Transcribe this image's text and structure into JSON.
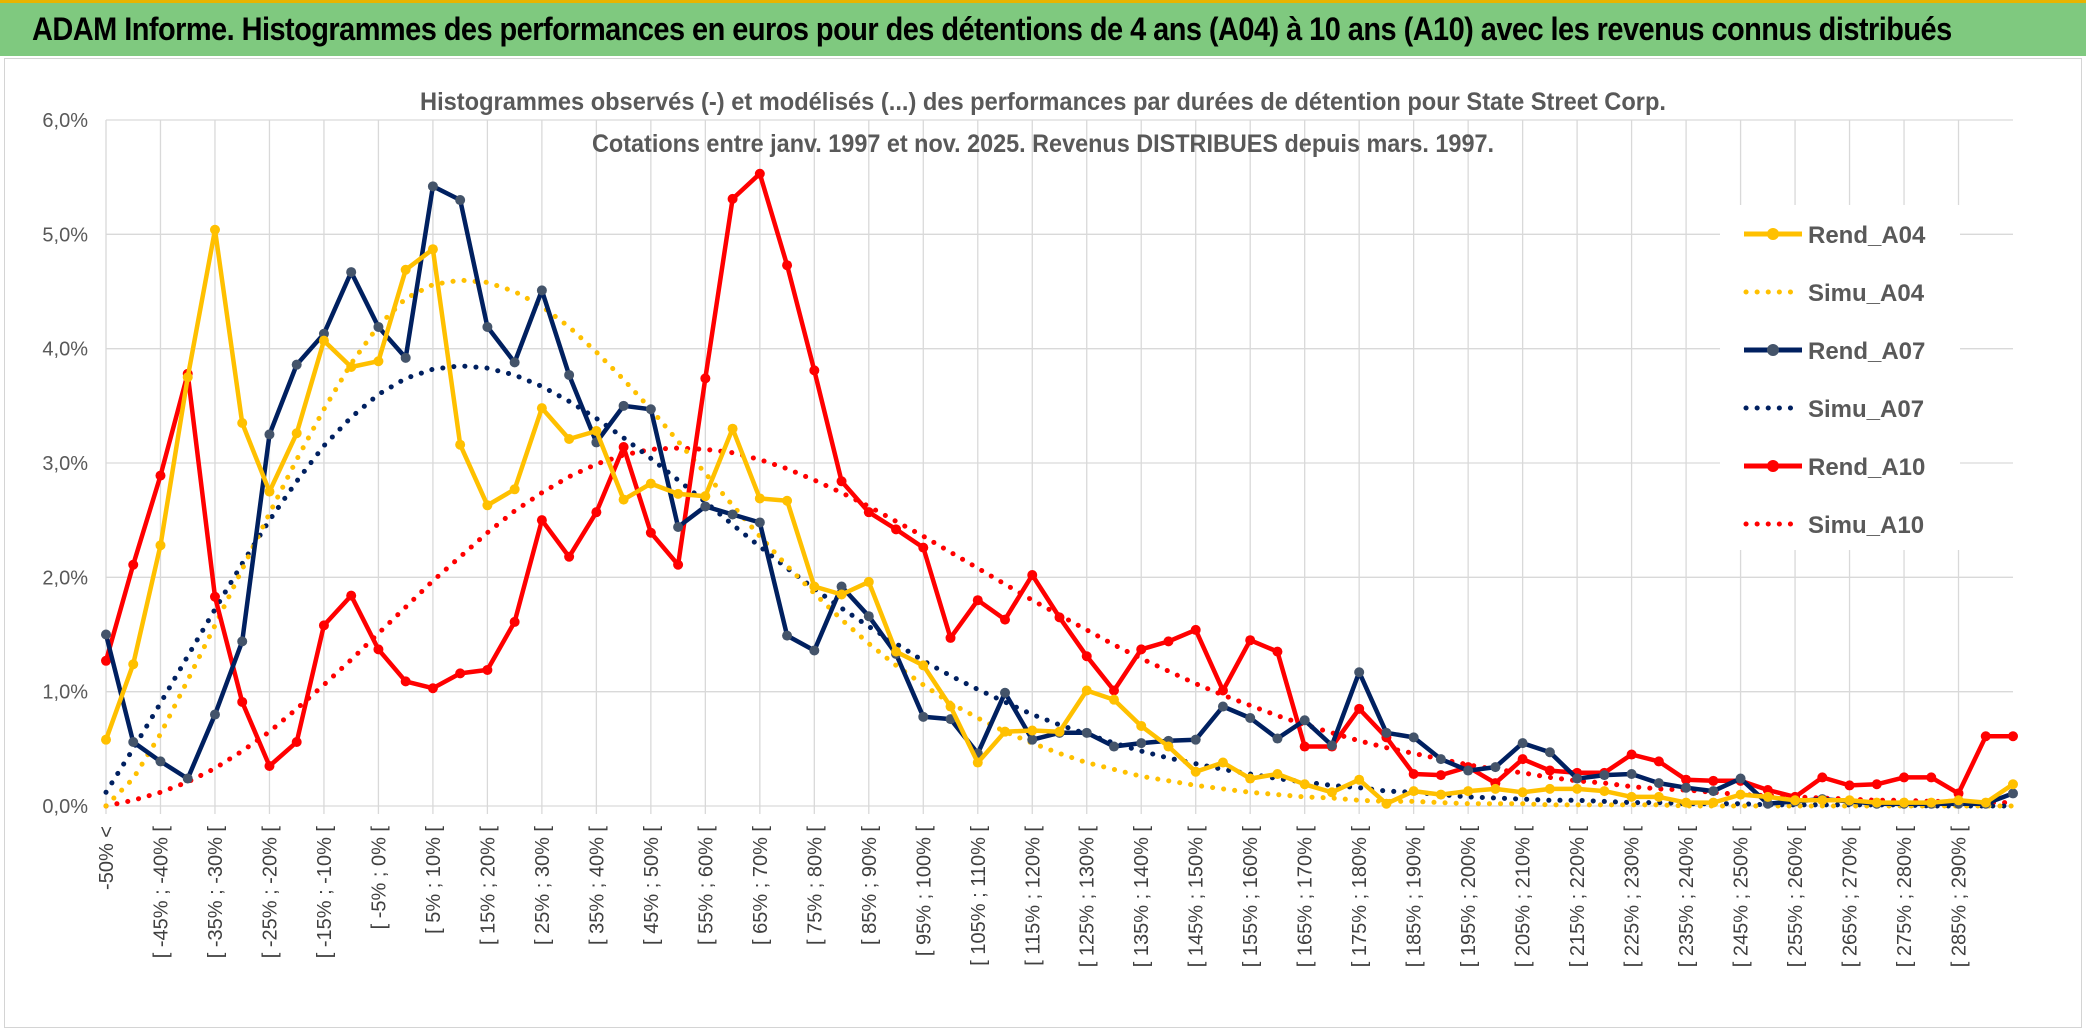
{
  "page": {
    "banner_title": "ADAM Informe. Histogrammes des performances en euros pour des détentions de 4 ans (A04) à 10 ans (A10) avec les revenus connus distribués"
  },
  "chart_data": {
    "type": "line",
    "title_lines": [
      "Histogrammes observés (-) et modélisés (...) des performances par durées de détention pour State Street Corp.",
      "Cotations entre janv. 1997 et nov. 2025. Revenus DISTRIBUES depuis mars. 1997."
    ],
    "xlabel": "",
    "ylabel": "",
    "ylim": [
      0,
      0.06
    ],
    "yticks": [
      "0,0%",
      "1,0%",
      "2,0%",
      "3,0%",
      "4,0%",
      "5,0%",
      "6,0%"
    ],
    "grid": true,
    "legend_position": "right",
    "x_tick_labels": [
      "-50% <",
      "[ -45% ; -40% [",
      "[ -35% ; -30% [",
      "[ -25% ; -20% [",
      "[ -15% ; -10% [",
      "[ -5% ; 0% [",
      "[ 5% ; 10% [",
      "[ 15% ; 20% [",
      "[ 25% ; 30% [",
      "[ 35% ; 40% [",
      "[ 45% ; 50% [",
      "[ 55% ; 60% [",
      "[ 65% ; 70% [",
      "[ 75% ; 80% [",
      "[ 85% ; 90% [",
      "[ 95% ; 100% [",
      "[ 105% ; 110% [",
      "[ 115% ; 120% [",
      "[ 125% ; 130% [",
      "[ 135% ; 140% [",
      "[ 145% ; 150% [",
      "[ 155% ; 160% [",
      "[ 165% ; 170% [",
      "[ 175% ; 180% [",
      "[ 185% ; 190% [",
      "[ 195% ; 200% [",
      "[ 205% ; 210% [",
      "[ 215% ; 220% [",
      "[ 225% ; 230% [",
      "[ 235% ; 240% [",
      "[ 245% ; 250% [",
      "[ 255% ; 260% [",
      "[ 265% ; 270% [",
      "[ 275% ; 280% [",
      "[ 285% ; 290% ["
    ],
    "n_categories": 71,
    "series": [
      {
        "name": "Rend_A04",
        "style": "solid",
        "color": "#ffc000",
        "values": [
          0.0058,
          0.0124,
          0.0228,
          0.0375,
          0.0504,
          0.0335,
          0.0275,
          0.0326,
          0.0407,
          0.0384,
          0.0389,
          0.0469,
          0.0487,
          0.0316,
          0.0263,
          0.0277,
          0.0348,
          0.0321,
          0.0328,
          0.0268,
          0.0282,
          0.0273,
          0.0271,
          0.033,
          0.0269,
          0.0267,
          0.0192,
          0.0185,
          0.0196,
          0.0135,
          0.0123,
          0.0087,
          0.0038,
          0.0065,
          0.0066,
          0.0065,
          0.0101,
          0.0093,
          0.007,
          0.0052,
          0.003,
          0.0038,
          0.0024,
          0.0028,
          0.0019,
          0.0012,
          0.0023,
          0.0002,
          0.0013,
          0.001,
          0.0013,
          0.0015,
          0.0012,
          0.0015,
          0.0015,
          0.0013,
          0.0008,
          0.0008,
          0.0003,
          0.0003,
          0.001,
          0.0008,
          0.0005,
          0.0005,
          0.0005,
          0.0003,
          0.0003,
          0.0003,
          0.0005,
          0.0003,
          0.0019
        ]
      },
      {
        "name": "Simu_A04",
        "style": "dotted",
        "color": "#ffc000",
        "values": [
          0.0,
          0.0024,
          0.0063,
          0.011,
          0.0158,
          0.0207,
          0.0256,
          0.0303,
          0.0347,
          0.0387,
          0.042,
          0.0444,
          0.0456,
          0.046,
          0.0458,
          0.045,
          0.0437,
          0.0419,
          0.0397,
          0.0373,
          0.0347,
          0.0319,
          0.0291,
          0.0263,
          0.0236,
          0.021,
          0.0186,
          0.0163,
          0.0142,
          0.0123,
          0.0106,
          0.009,
          0.0077,
          0.0065,
          0.0055,
          0.0046,
          0.0038,
          0.0032,
          0.0026,
          0.0022,
          0.0018,
          0.0015,
          0.0012,
          0.001,
          0.0008,
          0.0007,
          0.0005,
          0.0004,
          0.0004,
          0.0003,
          0.0002,
          0.0002,
          0.0002,
          0.0001,
          0.0001,
          0.0001,
          0.0001,
          0.0001,
          0.0,
          0.0,
          0.0,
          0.0,
          0.0,
          0.0,
          0.0,
          0.0,
          0.0,
          0.0,
          0.0,
          0.0,
          0.0
        ]
      },
      {
        "name": "Rend_A07",
        "style": "solid",
        "color": "#002060",
        "values": [
          0.015,
          0.0056,
          0.0039,
          0.0024,
          0.008,
          0.0144,
          0.0325,
          0.0386,
          0.0413,
          0.0467,
          0.0419,
          0.0392,
          0.0542,
          0.053,
          0.0419,
          0.0388,
          0.0451,
          0.0377,
          0.0318,
          0.035,
          0.0347,
          0.0244,
          0.0262,
          0.0255,
          0.0248,
          0.0149,
          0.0136,
          0.0192,
          0.0166,
          0.0133,
          0.0078,
          0.0076,
          0.0046,
          0.0099,
          0.0058,
          0.0064,
          0.0064,
          0.0052,
          0.0055,
          0.0057,
          0.0058,
          0.0087,
          0.0077,
          0.0059,
          0.0075,
          0.0053,
          0.0117,
          0.0064,
          0.006,
          0.0041,
          0.0031,
          0.0034,
          0.0055,
          0.0047,
          0.0024,
          0.0027,
          0.0028,
          0.002,
          0.0016,
          0.0013,
          0.0024,
          0.0002,
          0.0004,
          0.0006,
          0.0004,
          0.0002,
          0.0002,
          0.0002,
          0.0002,
          0.0002,
          0.0011
        ]
      },
      {
        "name": "Simu_A07",
        "style": "dotted",
        "color": "#002060",
        "values": [
          0.0012,
          0.005,
          0.009,
          0.0131,
          0.0172,
          0.0212,
          0.025,
          0.0284,
          0.0315,
          0.034,
          0.036,
          0.0374,
          0.0382,
          0.0385,
          0.0383,
          0.0377,
          0.0367,
          0.0354,
          0.0339,
          0.0322,
          0.0304,
          0.0285,
          0.0266,
          0.0246,
          0.0227,
          0.0208,
          0.019,
          0.0173,
          0.0157,
          0.0142,
          0.0127,
          0.0114,
          0.0102,
          0.0091,
          0.008,
          0.0071,
          0.0063,
          0.0055,
          0.0048,
          0.0042,
          0.0037,
          0.0032,
          0.0028,
          0.0024,
          0.0021,
          0.0018,
          0.0016,
          0.0013,
          0.0012,
          0.001,
          0.0008,
          0.0007,
          0.0006,
          0.0005,
          0.0005,
          0.0004,
          0.0003,
          0.0003,
          0.0002,
          0.0002,
          0.0002,
          0.0001,
          0.0001,
          0.0001,
          0.0001,
          0.0001,
          0.0001,
          0.0,
          0.0,
          0.0,
          0.0
        ]
      },
      {
        "name": "Rend_A10",
        "style": "solid",
        "color": "#ff0000",
        "values": [
          0.0127,
          0.0211,
          0.0289,
          0.0378,
          0.0183,
          0.0091,
          0.0035,
          0.0056,
          0.0158,
          0.0184,
          0.0137,
          0.0109,
          0.0103,
          0.0116,
          0.0119,
          0.0161,
          0.025,
          0.0218,
          0.0257,
          0.0314,
          0.0239,
          0.0211,
          0.0374,
          0.0531,
          0.0553,
          0.0473,
          0.0381,
          0.0284,
          0.0257,
          0.0242,
          0.0226,
          0.0147,
          0.018,
          0.0163,
          0.0202,
          0.0165,
          0.0131,
          0.0101,
          0.0137,
          0.0144,
          0.0154,
          0.0101,
          0.0145,
          0.0135,
          0.0052,
          0.0052,
          0.0085,
          0.006,
          0.0028,
          0.0027,
          0.0034,
          0.002,
          0.0041,
          0.0031,
          0.0029,
          0.0029,
          0.0045,
          0.0039,
          0.0023,
          0.0022,
          0.0022,
          0.0014,
          0.0008,
          0.0025,
          0.0018,
          0.0019,
          0.0025,
          0.0025,
          0.0011,
          0.0061,
          0.0061
        ]
      },
      {
        "name": "Simu_A10",
        "style": "dotted",
        "color": "#ff0000",
        "values": [
          0.0,
          0.0005,
          0.0012,
          0.0021,
          0.0033,
          0.0048,
          0.0065,
          0.0085,
          0.0106,
          0.0128,
          0.0151,
          0.0174,
          0.0197,
          0.0218,
          0.0239,
          0.0258,
          0.0274,
          0.0288,
          0.0299,
          0.0307,
          0.0312,
          0.0313,
          0.0312,
          0.0309,
          0.0303,
          0.0295,
          0.0285,
          0.0274,
          0.0262,
          0.0249,
          0.0236,
          0.0222,
          0.0208,
          0.0194,
          0.018,
          0.0167,
          0.0154,
          0.0141,
          0.0129,
          0.0118,
          0.0107,
          0.0097,
          0.0088,
          0.0079,
          0.0071,
          0.0064,
          0.0057,
          0.0051,
          0.0046,
          0.0041,
          0.0036,
          0.0032,
          0.0029,
          0.0025,
          0.0022,
          0.002,
          0.0017,
          0.0015,
          0.0014,
          0.0012,
          0.001,
          0.0009,
          0.0008,
          0.0007,
          0.0006,
          0.0005,
          0.0005,
          0.0004,
          0.0004,
          0.0003,
          0.0003
        ]
      }
    ]
  }
}
